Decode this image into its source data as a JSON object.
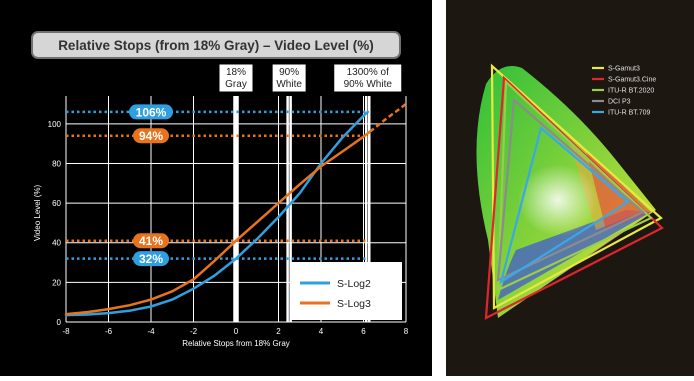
{
  "chart_data": [
    {
      "type": "line",
      "title": "Relative Stops (from 18% Gray) – Video Level (%)",
      "xlabel": "Relative Stops from 18% Gray",
      "ylabel": "Video Level (%)",
      "xlim": [
        -8,
        8
      ],
      "ylim": [
        0,
        110
      ],
      "x_ticks": [
        "-8",
        "-6",
        "-4",
        "-2",
        "0",
        "2",
        "4",
        "6",
        "8"
      ],
      "y_ticks": [
        "0",
        "20",
        "40",
        "60",
        "80",
        "100"
      ],
      "grid": true,
      "legend_position": "bottom-right",
      "series": [
        {
          "name": "S-Log2",
          "color": "#2f9fe0",
          "x": [
            -8,
            -7,
            -6,
            -5,
            -4,
            -3,
            -2,
            -1,
            0,
            1,
            2,
            3,
            4,
            5,
            6,
            6.2
          ],
          "y": [
            3.5,
            3.8,
            4.5,
            5.7,
            7.8,
            11.3,
            16.8,
            23.5,
            32,
            42,
            53,
            65,
            80,
            93,
            104,
            106
          ]
        },
        {
          "name": "S-Log3",
          "color": "#e8731c",
          "x": [
            -8,
            -7,
            -6,
            -5,
            -4,
            -3,
            -2,
            -1,
            0,
            1,
            2,
            3,
            4,
            5,
            6,
            6.3
          ],
          "y": [
            4,
            5,
            6.5,
            8.5,
            11.3,
            15.5,
            21.5,
            31,
            41,
            50.5,
            60,
            69.5,
            78.5,
            86,
            93.5,
            96
          ],
          "extension": {
            "x": [
              6.3,
              7,
              8
            ],
            "y": [
              96,
              102,
              110
            ]
          }
        }
      ],
      "reference_lines": [
        {
          "label": "106%",
          "y": 106,
          "color": "#2f9fe0"
        },
        {
          "label": "94%",
          "y": 94,
          "color": "#e8731c"
        },
        {
          "label": "41%",
          "y": 41,
          "color": "#e8731c"
        },
        {
          "label": "32%",
          "y": 32,
          "color": "#2f9fe0"
        }
      ],
      "markers": [
        {
          "x": 0,
          "label": [
            "18%",
            "Gray"
          ]
        },
        {
          "x": 2.5,
          "label": [
            "90%",
            "White"
          ]
        },
        {
          "x": 6.2,
          "label": [
            "1300% of",
            "90% White"
          ]
        }
      ]
    },
    {
      "type": "diagram",
      "series": [
        {
          "name": "S-Gamut3",
          "color": "#e8e840"
        },
        {
          "name": "S-Gamut3.Cine",
          "color": "#e0262c"
        },
        {
          "name": "ITU-R BT.2020",
          "color": "#9ccc4a"
        },
        {
          "name": "DCI P3",
          "color": "#8c8c8c"
        },
        {
          "name": "ITU-R BT.709",
          "color": "#3aa8e8"
        }
      ]
    }
  ]
}
